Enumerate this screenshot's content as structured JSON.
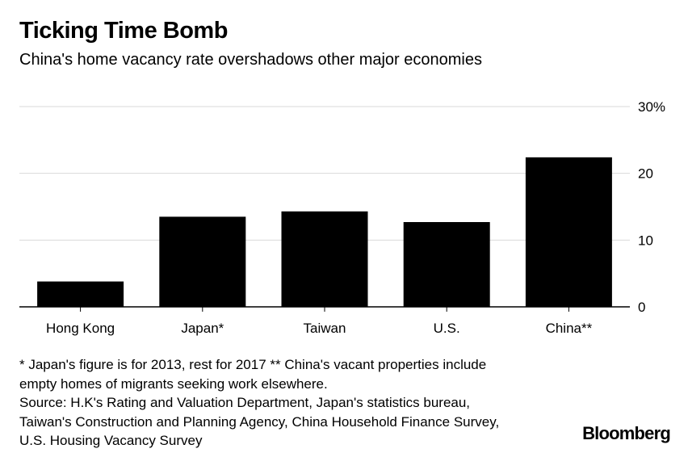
{
  "chart_data": {
    "type": "bar",
    "title": "Ticking Time Bomb",
    "subtitle": "China's home vacancy rate overshadows other major economies",
    "categories": [
      "Hong Kong",
      "Japan*",
      "Taiwan",
      "U.S.",
      "China**"
    ],
    "values": [
      3.8,
      13.5,
      14.3,
      12.7,
      22.4
    ],
    "ylim": [
      0,
      30
    ],
    "yticks": [
      0,
      10,
      20,
      30
    ],
    "ytick_labels": [
      "0",
      "10",
      "20",
      "30%"
    ],
    "xlabel": "",
    "ylabel": "",
    "grid": true,
    "bar_color": "#000000",
    "grid_color": "#d9d9d9"
  },
  "notes": [
    "* Japan's figure is for 2013, rest for 2017 ** China's vacant properties include",
    "empty homes of migrants seeking work elsewhere.",
    "Source: H.K's Rating and Valuation Department, Japan's statistics bureau,",
    "Taiwan's Construction and Planning Agency, China Household Finance Survey,",
    "U.S. Housing Vacancy Survey"
  ],
  "brand": "Bloomberg"
}
